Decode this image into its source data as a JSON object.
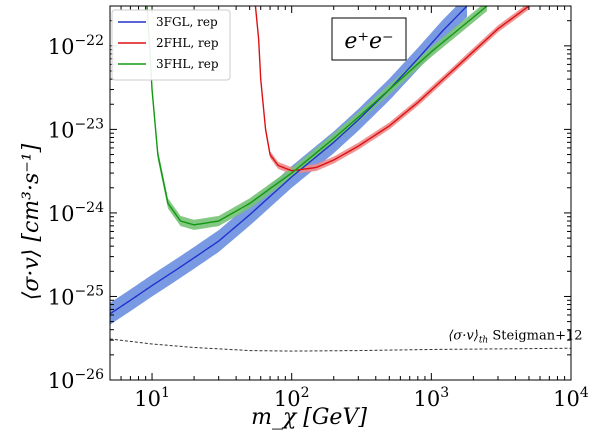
{
  "chart_data": {
    "type": "line",
    "x_scale": "log",
    "y_scale": "log",
    "xlim": [
      5,
      10000
    ],
    "ylim": [
      1e-26,
      3e-22
    ],
    "xlabel": "m_χ [GeV]",
    "ylabel": "⟨σ·v⟩ [cm³·s⁻¹]",
    "x_ticks": [
      {
        "value": 10,
        "base": "10",
        "exp": "1"
      },
      {
        "value": 100,
        "base": "10",
        "exp": "2"
      },
      {
        "value": 1000,
        "base": "10",
        "exp": "3"
      },
      {
        "value": 10000,
        "base": "10",
        "exp": "4"
      }
    ],
    "y_ticks": [
      {
        "value": 1e-26,
        "base": "10",
        "exp": "−26"
      },
      {
        "value": 1e-25,
        "base": "10",
        "exp": "−25"
      },
      {
        "value": 1e-24,
        "base": "10",
        "exp": "−24"
      },
      {
        "value": 1e-23,
        "base": "10",
        "exp": "−23"
      },
      {
        "value": 1e-22,
        "base": "10",
        "exp": "−22"
      }
    ],
    "legend_position": "top-left",
    "annotation_box": "e⁺e⁻",
    "series": [
      {
        "name": "3FGL, rep",
        "color": "#2233cc",
        "band_color": "#6a8fe0",
        "band_factor": 1.35,
        "points": [
          [
            5,
            6.2e-26
          ],
          [
            7,
            9e-26
          ],
          [
            10,
            1.35e-25
          ],
          [
            15,
            2.1e-25
          ],
          [
            20,
            2.9e-25
          ],
          [
            30,
            4.6e-25
          ],
          [
            50,
            9.5e-25
          ],
          [
            100,
            2.7e-24
          ],
          [
            200,
            7e-24
          ],
          [
            300,
            1.3e-23
          ],
          [
            500,
            3e-23
          ],
          [
            800,
            7e-23
          ],
          [
            1200,
            1.5e-22
          ],
          [
            1800,
            3e-22
          ]
        ]
      },
      {
        "name": "2FHL, rep",
        "color": "#dd1111",
        "band_color": "#ee8a8a",
        "band_factor": 1.1,
        "points": [
          [
            55,
            3e-22
          ],
          [
            58,
            1.2e-22
          ],
          [
            60,
            4e-23
          ],
          [
            65,
            1e-23
          ],
          [
            70,
            5e-24
          ],
          [
            80,
            3.7e-24
          ],
          [
            100,
            3.2e-24
          ],
          [
            150,
            3.5e-24
          ],
          [
            200,
            4.3e-24
          ],
          [
            300,
            6.3e-24
          ],
          [
            500,
            1.1e-23
          ],
          [
            800,
            2.1e-23
          ],
          [
            1500,
            5.5e-23
          ],
          [
            3000,
            1.6e-22
          ],
          [
            5000,
            3e-22
          ]
        ]
      },
      {
        "name": "3FHL, rep",
        "color": "#119911",
        "band_color": "#77c277",
        "band_factor": 1.15,
        "points": [
          [
            9.2,
            3e-22
          ],
          [
            9.6,
            1e-22
          ],
          [
            10,
            3e-23
          ],
          [
            11,
            5e-24
          ],
          [
            13,
            1.3e-24
          ],
          [
            16,
            8e-25
          ],
          [
            20,
            7.2e-25
          ],
          [
            30,
            8e-25
          ],
          [
            50,
            1.3e-24
          ],
          [
            100,
            3e-24
          ],
          [
            200,
            7.8e-24
          ],
          [
            300,
            1.4e-23
          ],
          [
            500,
            3e-23
          ],
          [
            1000,
            8.5e-23
          ],
          [
            2000,
            2.2e-22
          ],
          [
            2500,
            3e-22
          ]
        ]
      },
      {
        "name": "⟨σ·v⟩_th Steigman+12",
        "color": "#333333",
        "dashed": true,
        "points": [
          [
            5,
            3.1e-26
          ],
          [
            10,
            2.7e-26
          ],
          [
            20,
            2.45e-26
          ],
          [
            50,
            2.25e-26
          ],
          [
            100,
            2.22e-26
          ],
          [
            300,
            2.25e-26
          ],
          [
            1000,
            2.32e-26
          ],
          [
            10000,
            2.4e-26
          ]
        ]
      }
    ],
    "reference_label": {
      "main": "⟨σ·v⟩",
      "sub": "th",
      "suffix": " Steigman+12",
      "x": 300,
      "y": 2.6e-26
    }
  }
}
